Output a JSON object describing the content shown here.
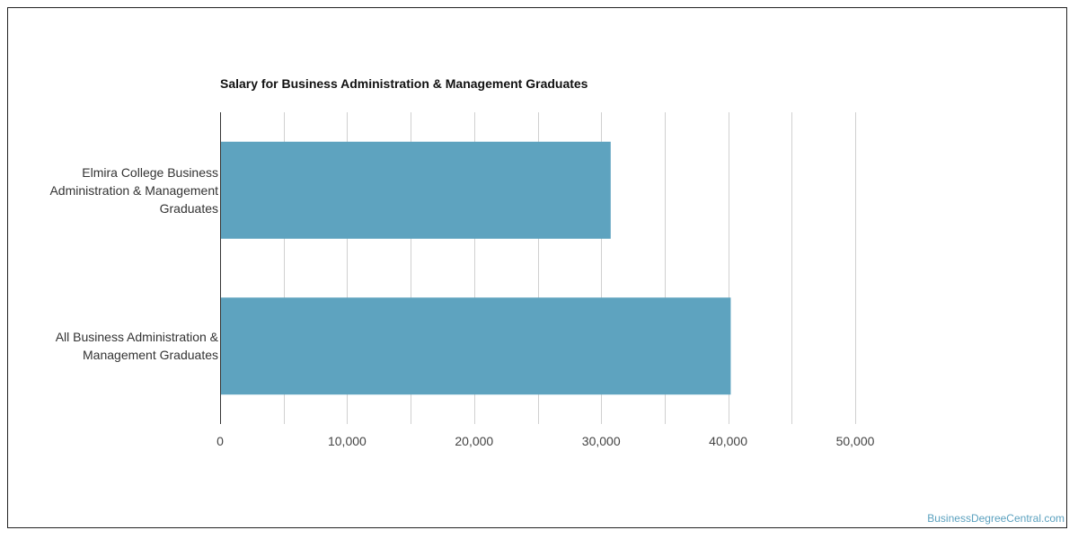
{
  "chart_data": {
    "type": "bar",
    "orientation": "horizontal",
    "title": "Salary for Business Administration & Management Graduates",
    "categories": [
      "Elmira College Business Administration & Management Graduates",
      "All Business Administration & Management Graduates"
    ],
    "category_lines": [
      [
        "Elmira College Business",
        "Administration & Management",
        "Graduates"
      ],
      [
        "All Business Administration &",
        "Management Graduates"
      ]
    ],
    "values": [
      30750,
      40200
    ],
    "xlim": [
      0,
      50000
    ],
    "xticks": [
      0,
      10000,
      20000,
      30000,
      40000,
      50000
    ],
    "xtick_labels": [
      "0",
      "10,000",
      "20,000",
      "30,000",
      "40,000",
      "50,000"
    ],
    "xlabel": "",
    "ylabel": "",
    "grid": true,
    "bar_color": "#5ea3bf",
    "grid_color": "#d0d0d0"
  },
  "watermark": "BusinessDegreeCentral.com"
}
